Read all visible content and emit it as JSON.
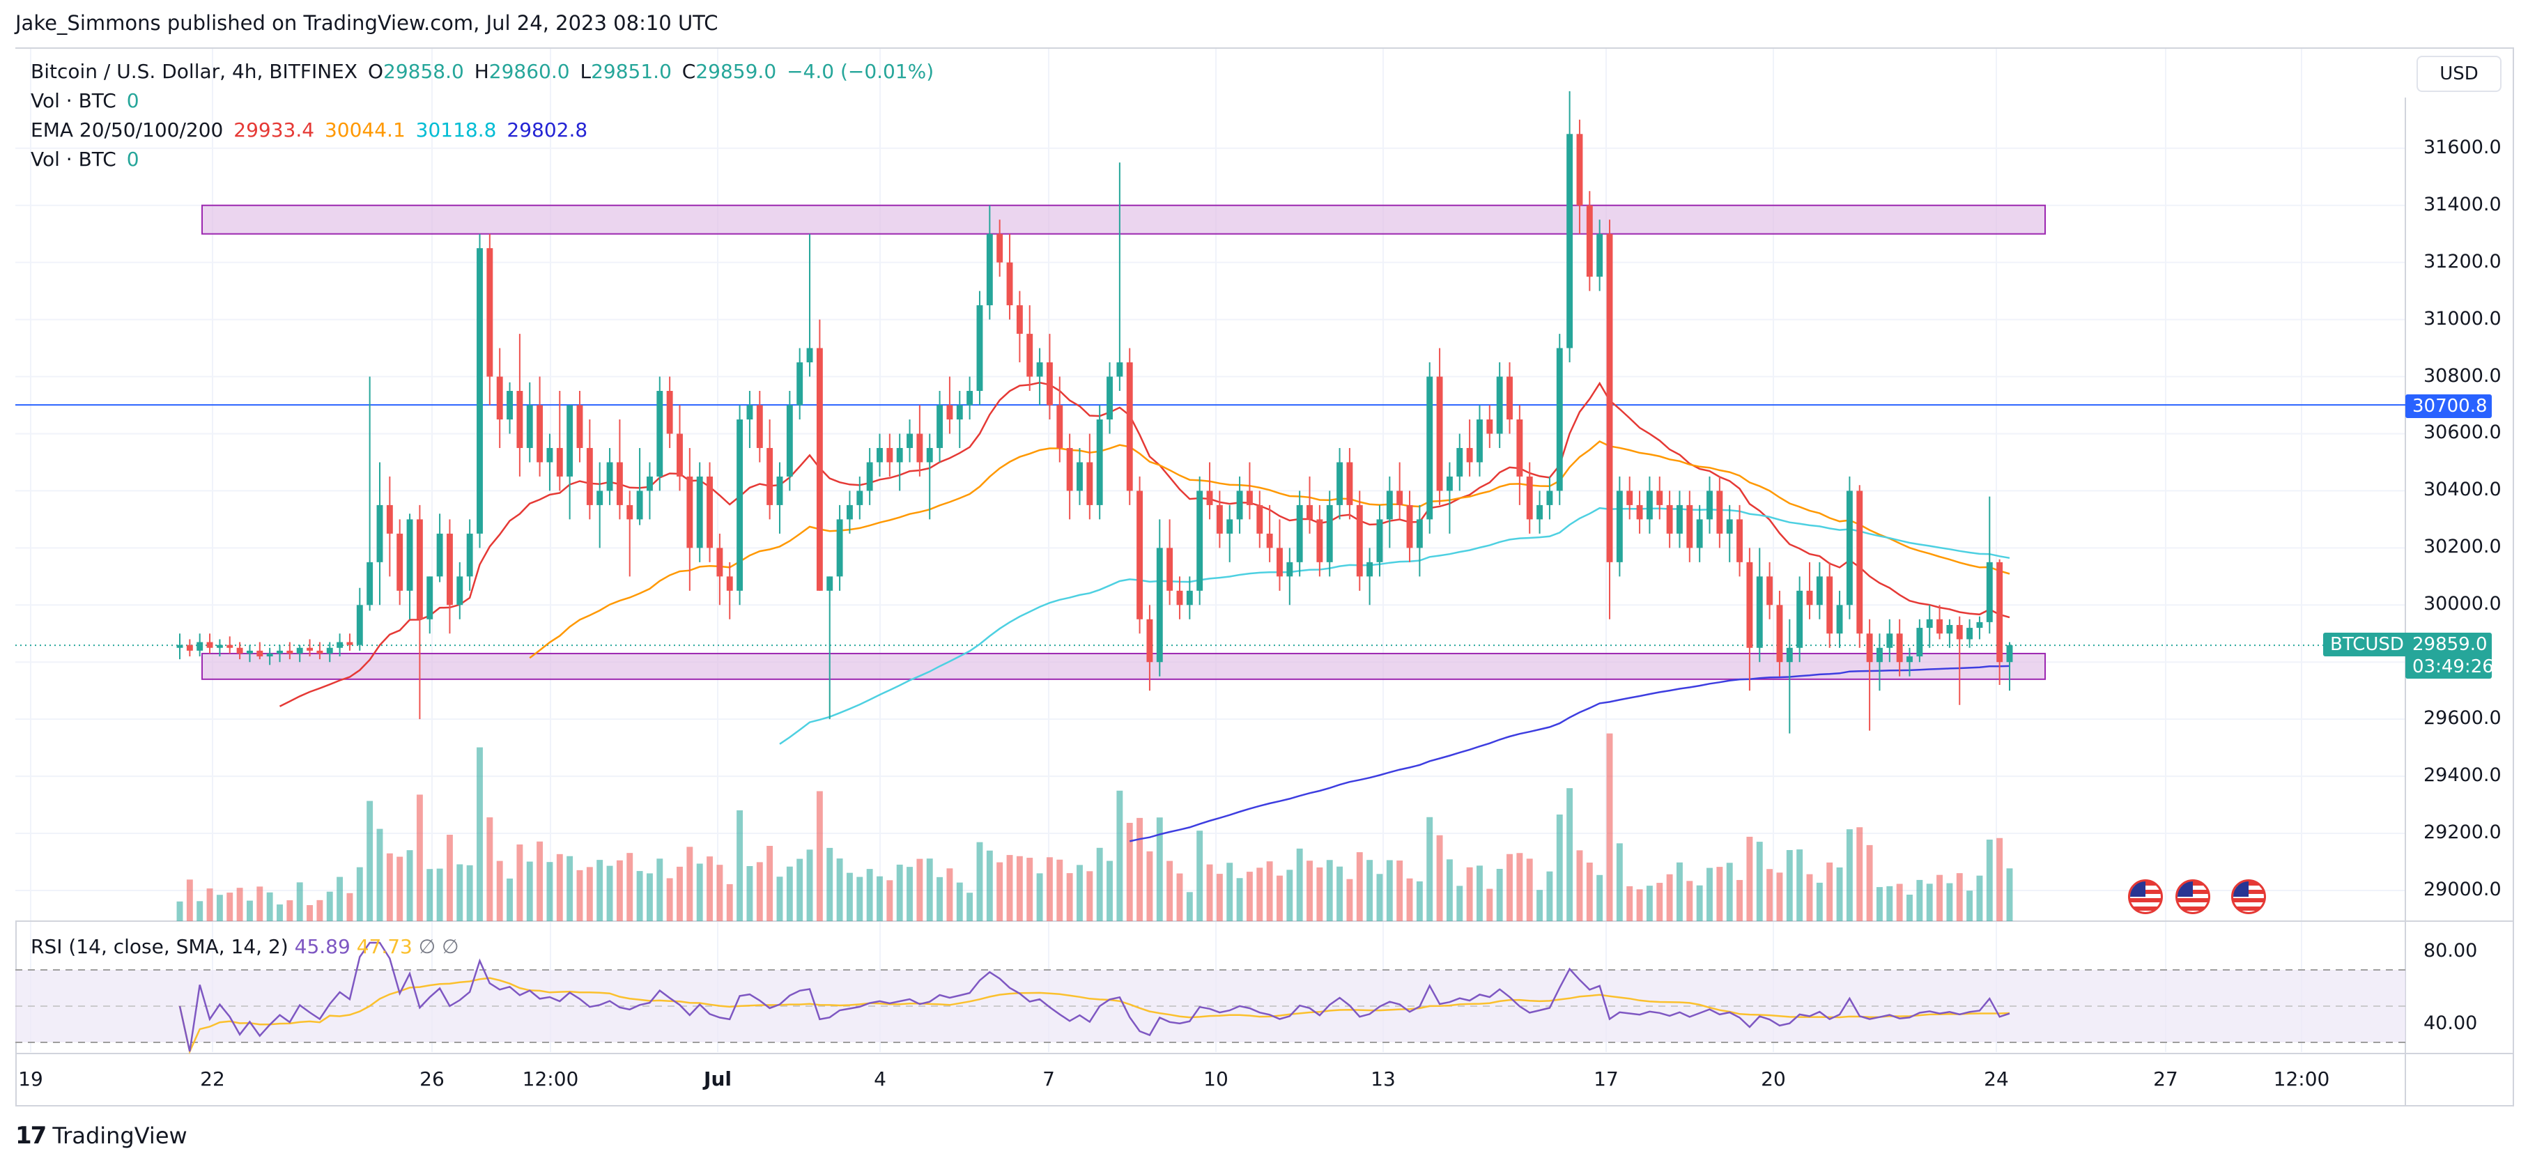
{
  "credit": "Jake_Simmons published on TradingView.com, Jul 24, 2023 08:10 UTC",
  "symbol": {
    "name": "Bitcoin / U.S. Dollar, 4h, BITFINEX",
    "o_label": "O",
    "o": "29858.0",
    "h_label": "H",
    "h": "29860.0",
    "l_label": "L",
    "l": "29851.0",
    "c_label": "C",
    "c": "29859.0",
    "change": "−4.0 (−0.01%)"
  },
  "vol1": {
    "label": "Vol · BTC",
    "value": "0"
  },
  "ema": {
    "label": "EMA 20/50/100/200",
    "v20": "29933.4",
    "v50": "30044.1",
    "v100": "30118.8",
    "v200": "29802.8"
  },
  "vol2": {
    "label": "Vol · BTC",
    "value": "0"
  },
  "rsi": {
    "label": "RSI (14, close, SMA, 14, 2)",
    "v1": "45.89",
    "v2": "47.73",
    "s1": "∅",
    "s2": "∅"
  },
  "currency": "USD",
  "price_axis": [
    "31600.0",
    "31400.0",
    "31200.0",
    "31000.0",
    "30800.0",
    "30600.0",
    "30400.0",
    "30200.0",
    "30000.0",
    "29600.0",
    "29400.0",
    "29200.0",
    "29000.0"
  ],
  "rsi_axis": [
    "80.00",
    "40.00"
  ],
  "time_axis": [
    "19",
    "22",
    "26",
    "12:00",
    "Jul",
    "4",
    "7",
    "10",
    "13",
    "17",
    "20",
    "24",
    "27",
    "12:00"
  ],
  "tags": {
    "hline_price": "30700.8",
    "symbol_tag": "BTCUSD",
    "last_price": "29859.0",
    "countdown": "03:49:26"
  },
  "logo": "TradingView",
  "colors": {
    "up": "#26a69a",
    "down": "#ef5350",
    "ema20": "#e53935",
    "ema50": "#ff9800",
    "ema100": "#4dd0e1",
    "ema200": "#3d3de0",
    "zone_fill": "#e1bee7",
    "zone_stroke": "#9c27b0",
    "hline": "#2962ff"
  },
  "chart_data": {
    "type": "candlestick",
    "timeframe": "4h",
    "y_range": [
      28900,
      31800
    ],
    "horizontal_line": 30700.8,
    "zones": [
      {
        "from": 31300,
        "to": 31400
      },
      {
        "from": 29740,
        "to": 29830
      }
    ],
    "ema_last": {
      "ema20": 29933.4,
      "ema50": 30044.1,
      "ema100": 30118.8,
      "ema200": 29802.8
    },
    "last_close": 29859.0,
    "rsi": {
      "last": 45.89,
      "sma": 47.73,
      "levels": [
        70,
        30
      ]
    },
    "candles": [
      [
        29850,
        29900,
        29810,
        29860
      ],
      [
        29860,
        29880,
        29820,
        29840
      ],
      [
        29840,
        29900,
        29820,
        29870
      ],
      [
        29870,
        29900,
        29830,
        29850
      ],
      [
        29850,
        29880,
        29820,
        29860
      ],
      [
        29860,
        29890,
        29830,
        29850
      ],
      [
        29850,
        29870,
        29810,
        29830
      ],
      [
        29830,
        29860,
        29800,
        29840
      ],
      [
        29840,
        29870,
        29810,
        29820
      ],
      [
        29820,
        29850,
        29790,
        29830
      ],
      [
        29830,
        29860,
        29800,
        29840
      ],
      [
        29840,
        29870,
        29810,
        29830
      ],
      [
        29830,
        29860,
        29800,
        29850
      ],
      [
        29850,
        29880,
        29820,
        29840
      ],
      [
        29840,
        29870,
        29810,
        29830
      ],
      [
        29830,
        29870,
        29800,
        29850
      ],
      [
        29850,
        29900,
        29820,
        29870
      ],
      [
        29870,
        29900,
        29840,
        29860
      ],
      [
        29860,
        30060,
        29840,
        30000
      ],
      [
        30000,
        30800,
        29980,
        30150
      ],
      [
        30150,
        30500,
        30000,
        30350
      ],
      [
        30350,
        30450,
        30100,
        30250
      ],
      [
        30250,
        30300,
        30000,
        30050
      ],
      [
        30050,
        30320,
        29950,
        30300
      ],
      [
        30300,
        30350,
        29600,
        29950
      ],
      [
        29950,
        30100,
        29900,
        30100
      ],
      [
        30100,
        30320,
        30080,
        30250
      ],
      [
        30250,
        30300,
        29900,
        30000
      ],
      [
        30000,
        30150,
        29950,
        30100
      ],
      [
        30100,
        30300,
        30050,
        30250
      ],
      [
        30250,
        31300,
        30200,
        31250
      ],
      [
        31250,
        31300,
        30700,
        30800
      ],
      [
        30800,
        30900,
        30550,
        30650
      ],
      [
        30650,
        30780,
        30600,
        30750
      ],
      [
        30750,
        30950,
        30450,
        30550
      ],
      [
        30550,
        30780,
        30500,
        30700
      ],
      [
        30700,
        30800,
        30450,
        30500
      ],
      [
        30500,
        30600,
        30400,
        30550
      ],
      [
        30550,
        30750,
        30400,
        30450
      ],
      [
        30450,
        30700,
        30300,
        30700
      ],
      [
        30700,
        30750,
        30500,
        30550
      ],
      [
        30550,
        30650,
        30300,
        30350
      ],
      [
        30350,
        30500,
        30200,
        30400
      ],
      [
        30400,
        30550,
        30350,
        30500
      ],
      [
        30500,
        30650,
        30300,
        30350
      ],
      [
        30350,
        30400,
        30100,
        30300
      ],
      [
        30300,
        30550,
        30280,
        30400
      ],
      [
        30400,
        30500,
        30300,
        30450
      ],
      [
        30450,
        30800,
        30400,
        30750
      ],
      [
        30750,
        30800,
        30550,
        30600
      ],
      [
        30600,
        30700,
        30400,
        30450
      ],
      [
        30450,
        30550,
        30050,
        30200
      ],
      [
        30200,
        30500,
        30150,
        30450
      ],
      [
        30450,
        30500,
        30150,
        30200
      ],
      [
        30200,
        30250,
        30000,
        30100
      ],
      [
        30100,
        30150,
        29950,
        30050
      ],
      [
        30050,
        30700,
        30000,
        30650
      ],
      [
        30650,
        30750,
        30550,
        30700
      ],
      [
        30700,
        30750,
        30500,
        30550
      ],
      [
        30550,
        30650,
        30300,
        30350
      ],
      [
        30350,
        30500,
        30250,
        30450
      ],
      [
        30450,
        30750,
        30400,
        30700
      ],
      [
        30700,
        30900,
        30650,
        30850
      ],
      [
        30850,
        31300,
        30800,
        30900
      ],
      [
        30900,
        31000,
        30050,
        30050
      ],
      [
        30050,
        30100,
        29600,
        30100
      ],
      [
        30100,
        30350,
        30050,
        30300
      ],
      [
        30300,
        30400,
        30250,
        30350
      ],
      [
        30350,
        30450,
        30300,
        30400
      ],
      [
        30400,
        30550,
        30350,
        30500
      ],
      [
        30500,
        30600,
        30450,
        30550
      ],
      [
        30550,
        30600,
        30450,
        30500
      ],
      [
        30500,
        30600,
        30400,
        30550
      ],
      [
        30550,
        30650,
        30500,
        30600
      ],
      [
        30600,
        30700,
        30450,
        30500
      ],
      [
        30500,
        30600,
        30300,
        30550
      ],
      [
        30550,
        30750,
        30500,
        30700
      ],
      [
        30700,
        30800,
        30600,
        30650
      ],
      [
        30650,
        30750,
        30550,
        30700
      ],
      [
        30700,
        30800,
        30650,
        30750
      ],
      [
        30750,
        31100,
        30700,
        31050
      ],
      [
        31050,
        31400,
        31000,
        31300
      ],
      [
        31300,
        31350,
        31150,
        31200
      ],
      [
        31200,
        31300,
        31000,
        31050
      ],
      [
        31050,
        31100,
        30850,
        30950
      ],
      [
        30950,
        31050,
        30750,
        30800
      ],
      [
        30800,
        30900,
        30700,
        30850
      ],
      [
        30850,
        30950,
        30650,
        30700
      ],
      [
        30700,
        30800,
        30500,
        30550
      ],
      [
        30550,
        30600,
        30300,
        30400
      ],
      [
        30400,
        30550,
        30350,
        30500
      ],
      [
        30500,
        30600,
        30300,
        30350
      ],
      [
        30350,
        30700,
        30300,
        30650
      ],
      [
        30650,
        30850,
        30600,
        30800
      ],
      [
        30800,
        31550,
        30750,
        30850
      ],
      [
        30850,
        30900,
        30350,
        30400
      ],
      [
        30400,
        30450,
        29900,
        29950
      ],
      [
        29950,
        30000,
        29700,
        29800
      ],
      [
        29800,
        30300,
        29750,
        30200
      ],
      [
        30200,
        30300,
        30000,
        30050
      ],
      [
        30050,
        30100,
        29950,
        30000
      ],
      [
        30000,
        30100,
        29950,
        30050
      ],
      [
        30050,
        30450,
        30000,
        30400
      ],
      [
        30400,
        30500,
        30300,
        30350
      ],
      [
        30350,
        30400,
        30200,
        30250
      ],
      [
        30250,
        30350,
        30150,
        30300
      ],
      [
        30300,
        30450,
        30250,
        30400
      ],
      [
        30400,
        30500,
        30300,
        30350
      ],
      [
        30350,
        30400,
        30200,
        30250
      ],
      [
        30250,
        30350,
        30150,
        30200
      ],
      [
        30200,
        30300,
        30050,
        30100
      ],
      [
        30100,
        30200,
        30000,
        30150
      ],
      [
        30150,
        30400,
        30100,
        30350
      ],
      [
        30350,
        30450,
        30250,
        30300
      ],
      [
        30300,
        30350,
        30100,
        30150
      ],
      [
        30150,
        30400,
        30100,
        30350
      ],
      [
        30350,
        30550,
        30300,
        30500
      ],
      [
        30500,
        30550,
        30300,
        30350
      ],
      [
        30350,
        30400,
        30050,
        30100
      ],
      [
        30100,
        30200,
        30000,
        30150
      ],
      [
        30150,
        30350,
        30100,
        30300
      ],
      [
        30300,
        30450,
        30200,
        30400
      ],
      [
        30400,
        30500,
        30300,
        30350
      ],
      [
        30350,
        30400,
        30150,
        30200
      ],
      [
        30200,
        30350,
        30100,
        30300
      ],
      [
        30300,
        30850,
        30250,
        30800
      ],
      [
        30800,
        30900,
        30350,
        30400
      ],
      [
        30400,
        30500,
        30250,
        30450
      ],
      [
        30450,
        30600,
        30400,
        30550
      ],
      [
        30550,
        30650,
        30450,
        30500
      ],
      [
        30500,
        30700,
        30450,
        30650
      ],
      [
        30650,
        30700,
        30550,
        30600
      ],
      [
        30600,
        30850,
        30550,
        30800
      ],
      [
        30800,
        30850,
        30600,
        30650
      ],
      [
        30650,
        30700,
        30350,
        30450
      ],
      [
        30450,
        30500,
        30250,
        30300
      ],
      [
        30300,
        30400,
        30250,
        30350
      ],
      [
        30350,
        30450,
        30300,
        30400
      ],
      [
        30400,
        30950,
        30350,
        30900
      ],
      [
        30900,
        31800,
        30850,
        31650
      ],
      [
        31650,
        31700,
        31300,
        31400
      ],
      [
        31400,
        31450,
        31100,
        31150
      ],
      [
        31150,
        31350,
        31100,
        31300
      ],
      [
        31300,
        31350,
        29950,
        30150
      ],
      [
        30150,
        30450,
        30100,
        30400
      ],
      [
        30400,
        30450,
        30300,
        30350
      ],
      [
        30350,
        30400,
        30250,
        30300
      ],
      [
        30300,
        30450,
        30250,
        30400
      ],
      [
        30400,
        30450,
        30300,
        30350
      ],
      [
        30350,
        30400,
        30200,
        30250
      ],
      [
        30250,
        30400,
        30200,
        30350
      ],
      [
        30350,
        30400,
        30150,
        30200
      ],
      [
        30200,
        30350,
        30150,
        30300
      ],
      [
        30300,
        30450,
        30250,
        30400
      ],
      [
        30400,
        30450,
        30200,
        30250
      ],
      [
        30250,
        30350,
        30150,
        30300
      ],
      [
        30300,
        30350,
        30100,
        30150
      ],
      [
        30150,
        30200,
        29700,
        29850
      ],
      [
        29850,
        30200,
        29800,
        30100
      ],
      [
        30100,
        30150,
        29950,
        30000
      ],
      [
        30000,
        30050,
        29750,
        29800
      ],
      [
        29800,
        29950,
        29550,
        29850
      ],
      [
        29850,
        30100,
        29800,
        30050
      ],
      [
        30050,
        30150,
        29950,
        30000
      ],
      [
        30000,
        30150,
        29950,
        30100
      ],
      [
        30100,
        30150,
        29850,
        29900
      ],
      [
        29900,
        30050,
        29850,
        30000
      ],
      [
        30000,
        30450,
        29950,
        30400
      ],
      [
        30400,
        30420,
        29850,
        29900
      ],
      [
        29900,
        29950,
        29560,
        29800
      ],
      [
        29800,
        29900,
        29700,
        29850
      ],
      [
        29850,
        29950,
        29800,
        29900
      ],
      [
        29900,
        29950,
        29750,
        29800
      ],
      [
        29800,
        29850,
        29750,
        29820
      ],
      [
        29820,
        29950,
        29800,
        29920
      ],
      [
        29920,
        30000,
        29850,
        29950
      ],
      [
        29950,
        30000,
        29880,
        29900
      ],
      [
        29900,
        29950,
        29850,
        29930
      ],
      [
        29930,
        29960,
        29650,
        29880
      ],
      [
        29880,
        29950,
        29850,
        29920
      ],
      [
        29920,
        29960,
        29880,
        29940
      ],
      [
        29940,
        30380,
        29900,
        30150
      ],
      [
        30150,
        30160,
        29720,
        29800
      ],
      [
        29800,
        29870,
        29700,
        29859
      ]
    ]
  }
}
